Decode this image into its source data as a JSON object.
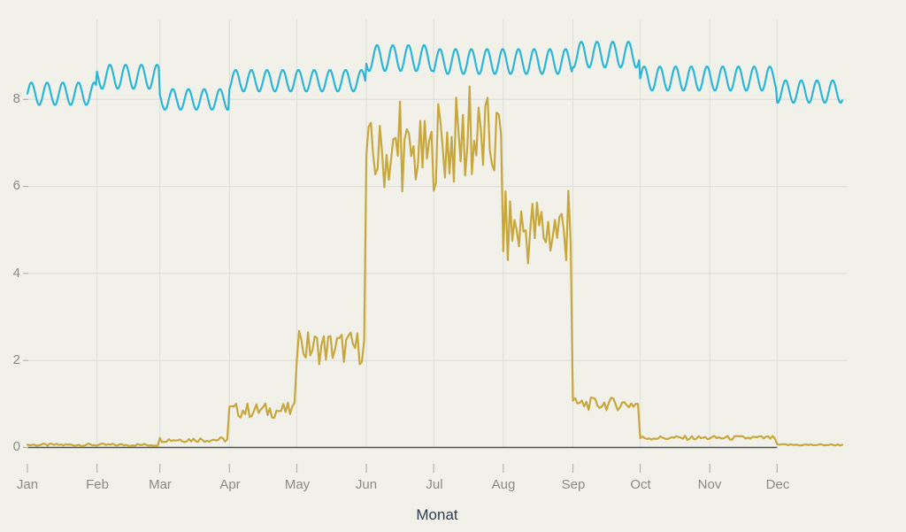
{
  "colors": {
    "background": "#f1f1ea",
    "grid": "#dededa",
    "tick": "#b3b3ac",
    "zero_line": "#515151",
    "axis_text": "#8b8b86",
    "axis_title_text": "#2e3d4b",
    "upper_series": "#29b6d9",
    "lower_series": "#c8a73c"
  },
  "chart_data": {
    "type": "line",
    "title": "",
    "xlabel": "Monat",
    "ylabel": "",
    "grid": "on",
    "legend": "none",
    "x_axis": {
      "tick_labels": [
        "Jan",
        "Feb",
        "Mar",
        "Apr",
        "May",
        "Jun",
        "Jul",
        "Aug",
        "Sep",
        "Oct",
        "Nov",
        "Dec"
      ],
      "tick_days": [
        0,
        31,
        59,
        90,
        120,
        151,
        181,
        212,
        243,
        273,
        304,
        334
      ],
      "range_days": [
        0,
        365
      ],
      "data_end_day": 363
    },
    "y_axis": {
      "tick_labels": [
        "0",
        "2",
        "4",
        "6",
        "8"
      ],
      "tick_values": [
        0,
        2,
        4,
        6,
        8
      ],
      "range": [
        0,
        9.5
      ]
    },
    "zero_line": {
      "from_day": 0,
      "to_day": 334
    },
    "series": [
      {
        "name": "upper-weekly-oscillating-line",
        "color": "#29b6d9",
        "width": 2.2,
        "oscillation": "sine-weekly",
        "period_days": 7,
        "description": "smooth weekly sine oscillation with step changes of monthly mean level",
        "segments": [
          {
            "days": [
              0,
              31
            ],
            "mean": 8.13,
            "amplitude": 0.26
          },
          {
            "days": [
              31,
              59
            ],
            "mean": 8.52,
            "amplitude": 0.28
          },
          {
            "days": [
              59,
              90
            ],
            "mean": 8.0,
            "amplitude": 0.24
          },
          {
            "days": [
              90,
              151
            ],
            "mean": 8.43,
            "amplitude": 0.25
          },
          {
            "days": [
              151,
              181
            ],
            "mean": 8.95,
            "amplitude": 0.3
          },
          {
            "days": [
              181,
              243
            ],
            "mean": 8.87,
            "amplitude": 0.29
          },
          {
            "days": [
              243,
              273
            ],
            "mean": 9.03,
            "amplitude": 0.3
          },
          {
            "days": [
              273,
              334
            ],
            "mean": 8.48,
            "amplitude": 0.28
          },
          {
            "days": [
              334,
              363.3
            ],
            "mean": 8.18,
            "amplitude": 0.26
          }
        ]
      },
      {
        "name": "lower-seasonal-noisy-line",
        "color": "#c8a73c",
        "width": 2.2,
        "oscillation": "daily-noise",
        "description": "noisy daily values with step changes at month boundaries; near zero in winter, high plateau June-August",
        "segments": [
          {
            "days": [
              0,
              59
            ],
            "mean": 0.06,
            "amplitude": 0.03
          },
          {
            "days": [
              59,
              90
            ],
            "mean": 0.18,
            "amplitude": 0.06
          },
          {
            "days": [
              90,
              120
            ],
            "mean": 0.85,
            "amplitude": 0.18
          },
          {
            "days": [
              120,
              151
            ],
            "mean": 2.3,
            "amplitude": 0.4
          },
          {
            "days": [
              151,
              181
            ],
            "mean": 6.7,
            "amplitude": 0.85
          },
          {
            "days": [
              181,
              212
            ],
            "mean": 7.0,
            "amplitude": 1.1
          },
          {
            "days": [
              212,
              243
            ],
            "mean": 5.0,
            "amplitude": 0.9
          },
          {
            "days": [
              243,
              273
            ],
            "mean": 1.0,
            "amplitude": 0.15
          },
          {
            "days": [
              273,
              334
            ],
            "mean": 0.22,
            "amplitude": 0.05
          },
          {
            "days": [
              334,
              363.5
            ],
            "mean": 0.06,
            "amplitude": 0.02
          }
        ],
        "spikes": [
          {
            "day": 121,
            "value": 2.68
          },
          {
            "day": 166,
            "value": 7.95
          },
          {
            "day": 197,
            "value": 8.3
          },
          {
            "day": 241,
            "value": 5.9
          }
        ]
      }
    ]
  }
}
